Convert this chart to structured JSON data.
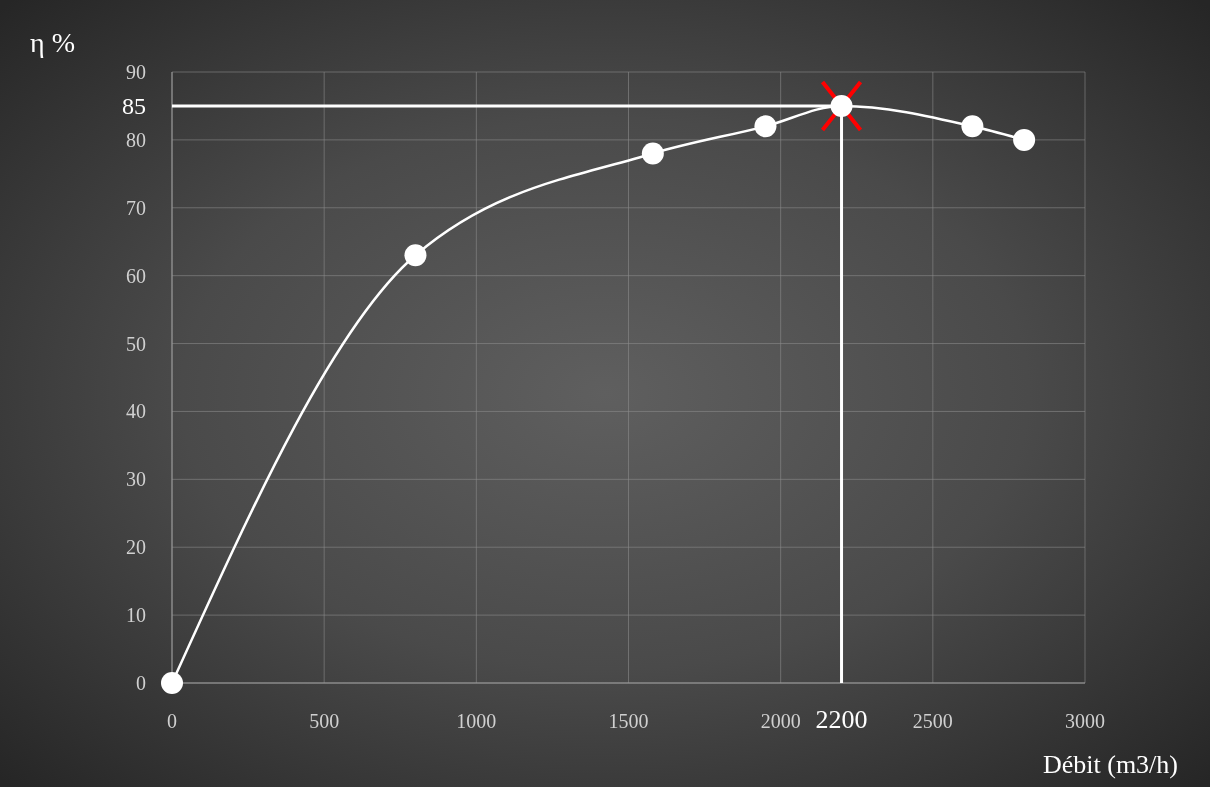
{
  "chart_data": {
    "type": "line",
    "xlabel": "Débit (m3/h)",
    "ylabel": "η %",
    "xlim": [
      0,
      3000
    ],
    "xticks": [
      0,
      500,
      1000,
      1500,
      2000,
      2500,
      3000
    ],
    "ylim": [
      0,
      90
    ],
    "yticks": [
      0,
      10,
      20,
      30,
      40,
      50,
      60,
      70,
      80,
      90
    ],
    "grid": true,
    "series": [
      {
        "color": "#ffffff",
        "marker": "circle",
        "x": [
          0,
          800,
          1580,
          1950,
          2200,
          2630,
          2800
        ],
        "values": [
          0,
          63,
          78,
          82,
          85,
          82,
          80
        ]
      }
    ],
    "ref_lines": [
      {
        "axis": "y",
        "value": 85,
        "label": "85",
        "color": "#ffffff"
      },
      {
        "axis": "x",
        "value": 2200,
        "label": "2200",
        "color": "#ffffff"
      }
    ]
  }
}
